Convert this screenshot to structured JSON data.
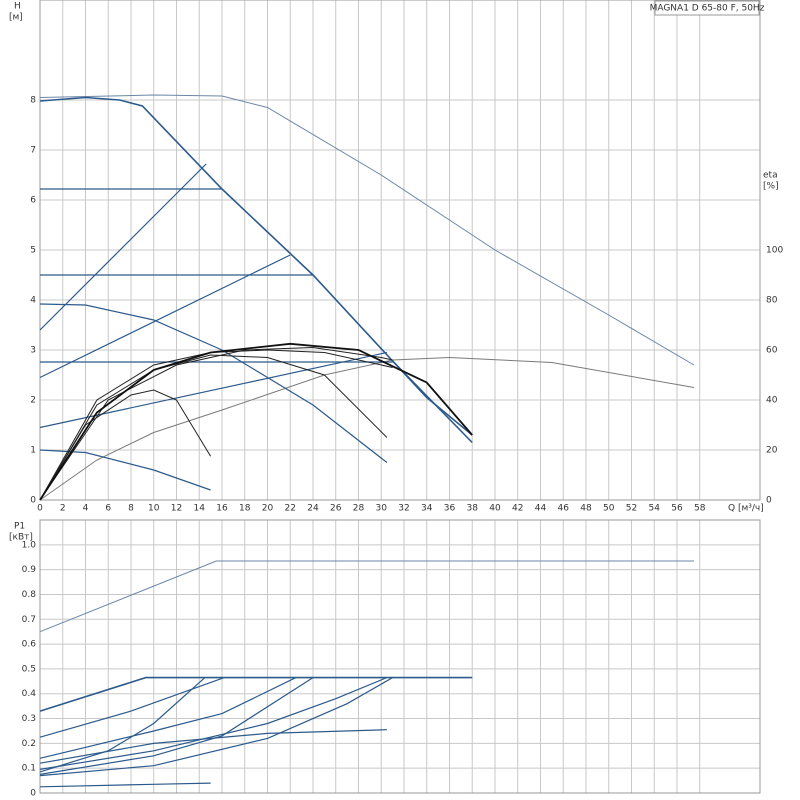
{
  "chart_data": [
    {
      "type": "line",
      "title": "MAGNA1 D 65-80 F, 50Hz",
      "y_label": "H",
      "y_unit": "[м]",
      "y2_label": "eta",
      "y2_unit": "[%]",
      "x_label": "Q [м³/ч]",
      "xlim": [
        0,
        63.3
      ],
      "xticks": [
        0,
        2,
        4,
        6,
        8,
        10,
        12,
        14,
        16,
        18,
        20,
        22,
        24,
        26,
        28,
        30,
        32,
        34,
        36,
        38,
        40,
        42,
        44,
        46,
        48,
        50,
        52,
        54,
        56,
        58
      ],
      "ylim": [
        0,
        10
      ],
      "yticks": [
        0,
        1,
        2,
        3,
        4,
        5,
        6,
        7,
        8
      ],
      "y2lim": [
        0,
        200
      ],
      "y2ticks": [
        0,
        20,
        40,
        60,
        80,
        100
      ],
      "grid": true,
      "series": [
        {
          "color": "#6b86a8",
          "width": 1,
          "x": [
            0,
            10,
            16,
            20,
            30,
            40,
            50,
            57.5
          ],
          "values": [
            8.05,
            8.1,
            8.08,
            7.85,
            6.5,
            5.0,
            3.7,
            2.7
          ]
        },
        {
          "color": "#7a7a7a",
          "width": 1,
          "axis": "y2",
          "x": [
            0,
            5,
            10,
            16,
            25,
            31,
            36,
            45,
            57.5
          ],
          "values": [
            0,
            16,
            27,
            36,
            50,
            56,
            57,
            55,
            45
          ]
        },
        {
          "color": "#2c5a8c",
          "width": 1.6,
          "x": [
            0,
            4,
            7,
            9,
            16,
            24,
            31,
            38
          ],
          "values": [
            7.98,
            8.05,
            8.0,
            7.88,
            6.22,
            4.5,
            2.78,
            1.15
          ]
        },
        {
          "color": "#2c5a8c",
          "width": 1.2,
          "x": [
            0,
            16
          ],
          "values": [
            6.22,
            6.22
          ]
        },
        {
          "color": "#2c5a8c",
          "width": 1.2,
          "x": [
            0,
            24
          ],
          "values": [
            4.5,
            4.5
          ]
        },
        {
          "color": "#2c5a8c",
          "width": 1.2,
          "x": [
            0,
            31
          ],
          "values": [
            2.76,
            2.76
          ]
        },
        {
          "color": "#2c5a8c",
          "width": 1.2,
          "x": [
            0,
            14.6
          ],
          "values": [
            3.4,
            6.72
          ]
        },
        {
          "color": "#2c5a8c",
          "width": 1.2,
          "x": [
            0,
            22
          ],
          "values": [
            2.45,
            4.9
          ]
        },
        {
          "color": "#2c5a8c",
          "width": 1.2,
          "x": [
            0,
            30.5
          ],
          "values": [
            1.45,
            2.95
          ]
        },
        {
          "color": "#2c5a8c",
          "width": 1.2,
          "x": [
            0,
            4,
            10,
            16,
            24,
            30.5
          ],
          "values": [
            3.92,
            3.9,
            3.6,
            3.0,
            1.9,
            0.75
          ]
        },
        {
          "color": "#2c5a8c",
          "width": 1.2,
          "x": [
            0,
            4,
            10,
            15
          ],
          "values": [
            1.0,
            0.95,
            0.6,
            0.2
          ]
        },
        {
          "color": "#2c5a8c",
          "width": 1.6,
          "x": [
            31,
            34,
            38
          ],
          "values": [
            2.78,
            2.05,
            1.3
          ]
        },
        {
          "color": "#222222",
          "width": 1,
          "axis": "y2",
          "x": [
            0,
            4,
            8,
            10,
            12,
            15
          ],
          "values": [
            0,
            30,
            42,
            44,
            40,
            17.5
          ]
        },
        {
          "color": "#222222",
          "width": 1,
          "axis": "y2",
          "x": [
            0,
            5,
            10,
            15,
            20,
            25,
            30.5
          ],
          "values": [
            0,
            38,
            52,
            58,
            57,
            50,
            25
          ]
        },
        {
          "color": "#222222",
          "width": 1,
          "axis": "y2",
          "x": [
            0,
            5,
            10,
            15,
            20,
            25,
            31
          ],
          "values": [
            0,
            40,
            54,
            59,
            60,
            59,
            53
          ]
        },
        {
          "color": "#222222",
          "width": 1,
          "axis": "y2",
          "x": [
            0,
            6,
            12,
            18,
            24,
            30,
            31
          ],
          "values": [
            0,
            40,
            54,
            60,
            61,
            57,
            56
          ]
        },
        {
          "color": "#111111",
          "width": 1.8,
          "axis": "y2",
          "x": [
            0,
            5,
            10,
            15,
            22,
            28,
            34,
            38
          ],
          "values": [
            0,
            35,
            52,
            59,
            62.5,
            60,
            47,
            26
          ]
        }
      ]
    },
    {
      "type": "line",
      "y_label": "P1",
      "y_unit": "[кВт]",
      "xlim": [
        0,
        63.3
      ],
      "xticks": [
        0,
        2,
        4,
        6,
        8,
        10,
        12,
        14,
        16,
        18,
        20,
        22,
        24,
        26,
        28,
        30,
        32,
        34,
        36,
        38,
        40,
        42,
        44,
        46,
        48,
        50,
        52,
        54,
        56,
        58
      ],
      "ylim": [
        0,
        1.1
      ],
      "yticks": [
        0,
        0.1,
        0.2,
        0.3,
        0.4,
        0.5,
        0.6,
        0.7,
        0.8,
        0.9,
        {
          "value": 1,
          "label": "1.0"
        }
      ],
      "grid": true,
      "series": [
        {
          "color": "#6b86a8",
          "width": 1,
          "x": [
            0,
            15.5,
            57.5
          ],
          "values": [
            0.65,
            0.935,
            0.935
          ]
        },
        {
          "color": "#2c5a8c",
          "width": 1.6,
          "x": [
            0,
            9.3,
            38
          ],
          "values": [
            0.33,
            0.465,
            0.465
          ]
        },
        {
          "color": "#2c5a8c",
          "width": 1.2,
          "x": [
            0,
            8,
            16.2
          ],
          "values": [
            0.225,
            0.33,
            0.465
          ]
        },
        {
          "color": "#2c5a8c",
          "width": 1.2,
          "x": [
            0,
            6,
            10,
            14.5
          ],
          "values": [
            0.085,
            0.17,
            0.28,
            0.465
          ]
        },
        {
          "color": "#2c5a8c",
          "width": 1.2,
          "x": [
            0,
            10,
            16,
            22.5
          ],
          "values": [
            0.14,
            0.25,
            0.32,
            0.465
          ]
        },
        {
          "color": "#2c5a8c",
          "width": 1.2,
          "x": [
            0,
            10,
            16,
            24
          ],
          "values": [
            0.075,
            0.15,
            0.23,
            0.465
          ]
        },
        {
          "color": "#2c5a8c",
          "width": 1.2,
          "x": [
            0,
            10,
            20,
            26,
            30.5
          ],
          "values": [
            0.095,
            0.17,
            0.28,
            0.38,
            0.465
          ]
        },
        {
          "color": "#2c5a8c",
          "width": 1.2,
          "x": [
            0,
            10,
            20,
            27,
            31
          ],
          "values": [
            0.07,
            0.11,
            0.22,
            0.36,
            0.465
          ]
        },
        {
          "color": "#2c5a8c",
          "width": 1.2,
          "x": [
            0,
            10,
            20,
            30.5
          ],
          "values": [
            0.12,
            0.2,
            0.24,
            0.255
          ]
        },
        {
          "color": "#2c5a8c",
          "width": 1.2,
          "x": [
            0,
            10,
            15
          ],
          "values": [
            0.025,
            0.035,
            0.04
          ]
        }
      ]
    }
  ]
}
